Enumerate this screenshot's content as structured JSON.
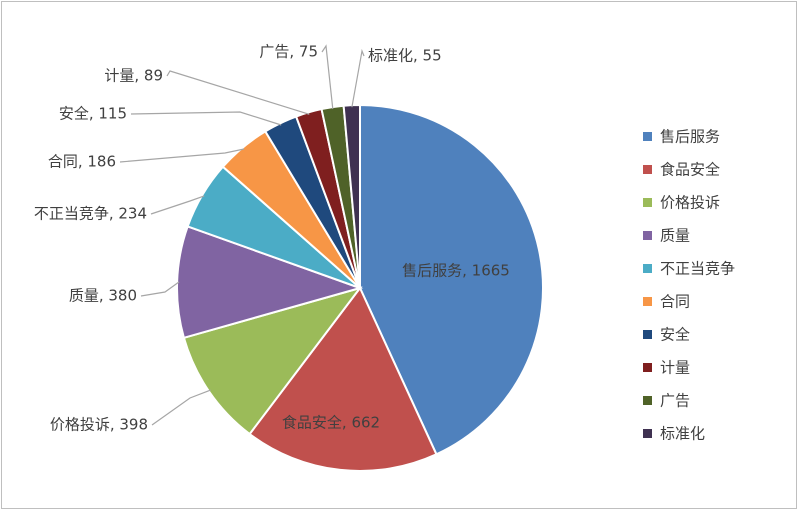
{
  "chart_data": {
    "type": "pie",
    "title": "",
    "legend_position": "right",
    "slices": [
      {
        "label": "售后服务",
        "value": 1665,
        "color": "#4f81bd"
      },
      {
        "label": "食品安全",
        "value": 662,
        "color": "#c0504d"
      },
      {
        "label": "价格投诉",
        "value": 398,
        "color": "#9bbb59"
      },
      {
        "label": "质量",
        "value": 380,
        "color": "#8064a2"
      },
      {
        "label": "不正当竞争",
        "value": 234,
        "color": "#4bacc6"
      },
      {
        "label": "合同",
        "value": 186,
        "color": "#f79646"
      },
      {
        "label": "安全",
        "value": 115,
        "color": "#1f497d"
      },
      {
        "label": "计量",
        "value": 89,
        "color": "#7f1f1f"
      },
      {
        "label": "广告",
        "value": 75,
        "color": "#4f6228"
      },
      {
        "label": "标准化",
        "value": 55,
        "color": "#3f3151"
      }
    ]
  }
}
